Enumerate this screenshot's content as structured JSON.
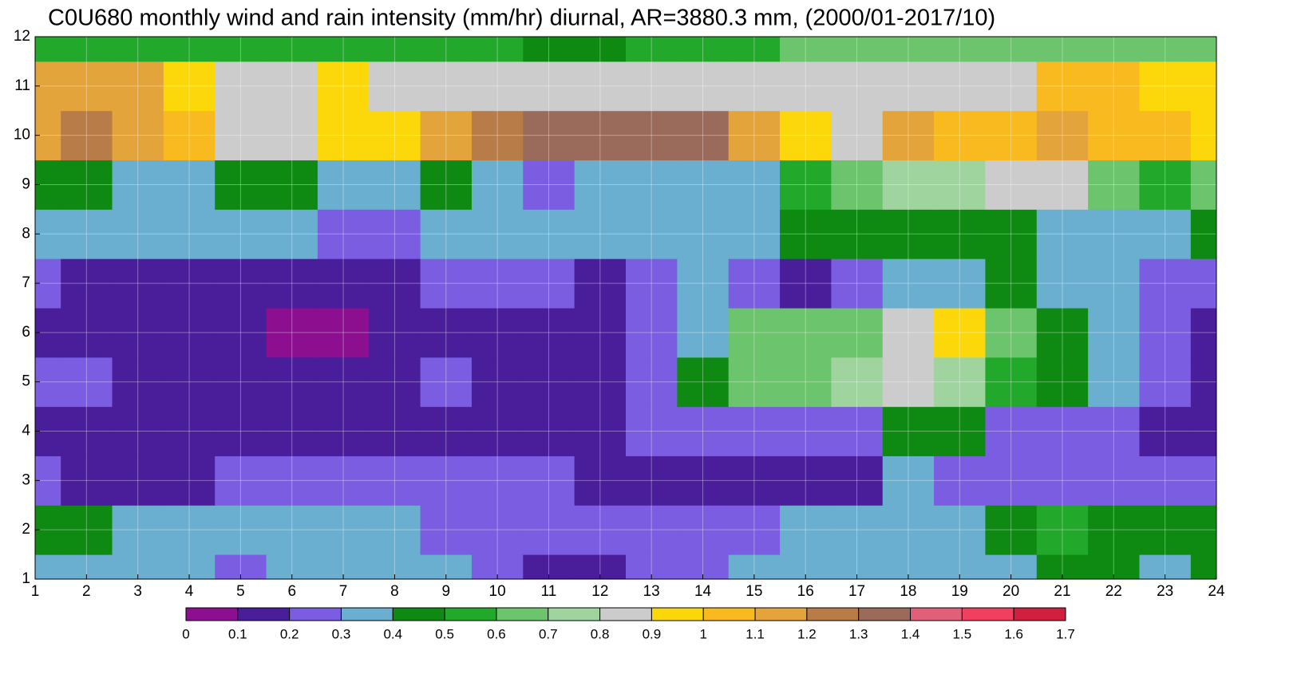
{
  "chart_data": {
    "type": "contour",
    "title": "C0U680 monthly wind and rain intensity (mm/hr) diurnal, AR=3880.3 mm, (2000/01-2017/10)",
    "x": [
      1,
      2,
      3,
      4,
      5,
      6,
      7,
      8,
      9,
      10,
      11,
      12,
      13,
      14,
      15,
      16,
      17,
      18,
      19,
      20,
      21,
      22,
      23,
      24
    ],
    "y": [
      1,
      2,
      3,
      4,
      5,
      6,
      7,
      8,
      9,
      10,
      11,
      12
    ],
    "xlim": [
      1,
      24
    ],
    "ylim": [
      1,
      12
    ],
    "xticks": [
      1,
      2,
      3,
      4,
      5,
      6,
      7,
      8,
      9,
      10,
      11,
      12,
      13,
      14,
      15,
      16,
      17,
      18,
      19,
      20,
      21,
      22,
      23,
      24
    ],
    "yticks": [
      1,
      2,
      3,
      4,
      5,
      6,
      7,
      8,
      9,
      10,
      11,
      12
    ],
    "grid": true,
    "z": [
      [
        0.35,
        0.35,
        0.35,
        0.3,
        0.25,
        0.3,
        0.3,
        0.35,
        0.35,
        0.25,
        0.15,
        0.15,
        0.2,
        0.25,
        0.3,
        0.35,
        0.35,
        0.35,
        0.35,
        0.35,
        0.45,
        0.45,
        0.35,
        0.4
      ],
      [
        0.45,
        0.45,
        0.35,
        0.35,
        0.35,
        0.35,
        0.35,
        0.35,
        0.25,
        0.25,
        0.25,
        0.25,
        0.25,
        0.25,
        0.25,
        0.3,
        0.35,
        0.35,
        0.35,
        0.45,
        0.55,
        0.45,
        0.45,
        0.4
      ],
      [
        0.25,
        0.15,
        0.15,
        0.15,
        0.25,
        0.25,
        0.25,
        0.2,
        0.25,
        0.25,
        0.2,
        0.15,
        0.15,
        0.15,
        0.15,
        0.15,
        0.15,
        0.3,
        0.25,
        0.25,
        0.25,
        0.25,
        0.25,
        0.25
      ],
      [
        0.15,
        0.15,
        0.15,
        0.15,
        0.15,
        0.15,
        0.15,
        0.15,
        0.15,
        0.15,
        0.15,
        0.15,
        0.2,
        0.2,
        0.2,
        0.2,
        0.25,
        0.45,
        0.45,
        0.25,
        0.25,
        0.25,
        0.15,
        0.15
      ],
      [
        0.25,
        0.25,
        0.15,
        0.15,
        0.15,
        0.15,
        0.15,
        0.15,
        0.25,
        0.15,
        0.15,
        0.15,
        0.25,
        0.45,
        0.6,
        0.65,
        0.7,
        0.8,
        0.75,
        0.55,
        0.45,
        0.35,
        0.25,
        0.15
      ],
      [
        0.15,
        0.15,
        0.15,
        0.15,
        0.15,
        0.05,
        0.05,
        0.1,
        0.15,
        0.15,
        0.15,
        0.15,
        0.25,
        0.35,
        0.6,
        0.65,
        0.65,
        0.85,
        0.9,
        0.6,
        0.45,
        0.3,
        0.2,
        0.15
      ],
      [
        0.25,
        0.15,
        0.15,
        0.15,
        0.15,
        0.15,
        0.15,
        0.15,
        0.25,
        0.2,
        0.2,
        0.1,
        0.2,
        0.3,
        0.2,
        0.15,
        0.25,
        0.3,
        0.3,
        0.4,
        0.35,
        0.35,
        0.25,
        0.25
      ],
      [
        0.35,
        0.3,
        0.3,
        0.3,
        0.3,
        0.3,
        0.25,
        0.25,
        0.3,
        0.35,
        0.35,
        0.35,
        0.3,
        0.35,
        0.35,
        0.45,
        0.45,
        0.45,
        0.45,
        0.45,
        0.35,
        0.35,
        0.35,
        0.45
      ],
      [
        0.45,
        0.45,
        0.35,
        0.35,
        0.45,
        0.45,
        0.35,
        0.35,
        0.45,
        0.35,
        0.25,
        0.35,
        0.35,
        0.35,
        0.35,
        0.5,
        0.65,
        0.7,
        0.75,
        0.85,
        0.8,
        0.6,
        0.55,
        0.6
      ],
      [
        1.1,
        1.2,
        1.1,
        1.0,
        0.85,
        0.85,
        0.95,
        0.9,
        1.1,
        1.2,
        1.3,
        1.3,
        1.35,
        1.3,
        1.1,
        0.95,
        0.85,
        1.1,
        1.0,
        1.05,
        1.1,
        1.05,
        1.0,
        0.95
      ],
      [
        1.1,
        1.15,
        1.1,
        0.95,
        0.85,
        0.85,
        0.95,
        0.85,
        0.85,
        0.85,
        0.85,
        0.85,
        0.8,
        0.8,
        0.8,
        0.85,
        0.85,
        0.85,
        0.85,
        0.85,
        1.05,
        1.05,
        0.95,
        0.95
      ],
      [
        0.55,
        0.55,
        0.55,
        0.55,
        0.5,
        0.55,
        0.55,
        0.5,
        0.5,
        0.5,
        0.45,
        0.45,
        0.5,
        0.55,
        0.55,
        0.6,
        0.6,
        0.65,
        0.65,
        0.65,
        0.65,
        0.65,
        0.65,
        0.65
      ]
    ],
    "levels": [
      0,
      0.1,
      0.2,
      0.3,
      0.4,
      0.5,
      0.6,
      0.7,
      0.8,
      0.9,
      1,
      1.1,
      1.2,
      1.3,
      1.4,
      1.5,
      1.6,
      1.7
    ],
    "colors": [
      "#8b0f8f",
      "#4a1d9a",
      "#7a5de0",
      "#6aaed0",
      "#0e8a12",
      "#22a82a",
      "#6cc46c",
      "#9fd49f",
      "#cccccc",
      "#fcd80a",
      "#f9ba20",
      "#e4a43c",
      "#b87c48",
      "#9a6a5a",
      "#e0607a",
      "#f04060",
      "#d02040"
    ]
  }
}
